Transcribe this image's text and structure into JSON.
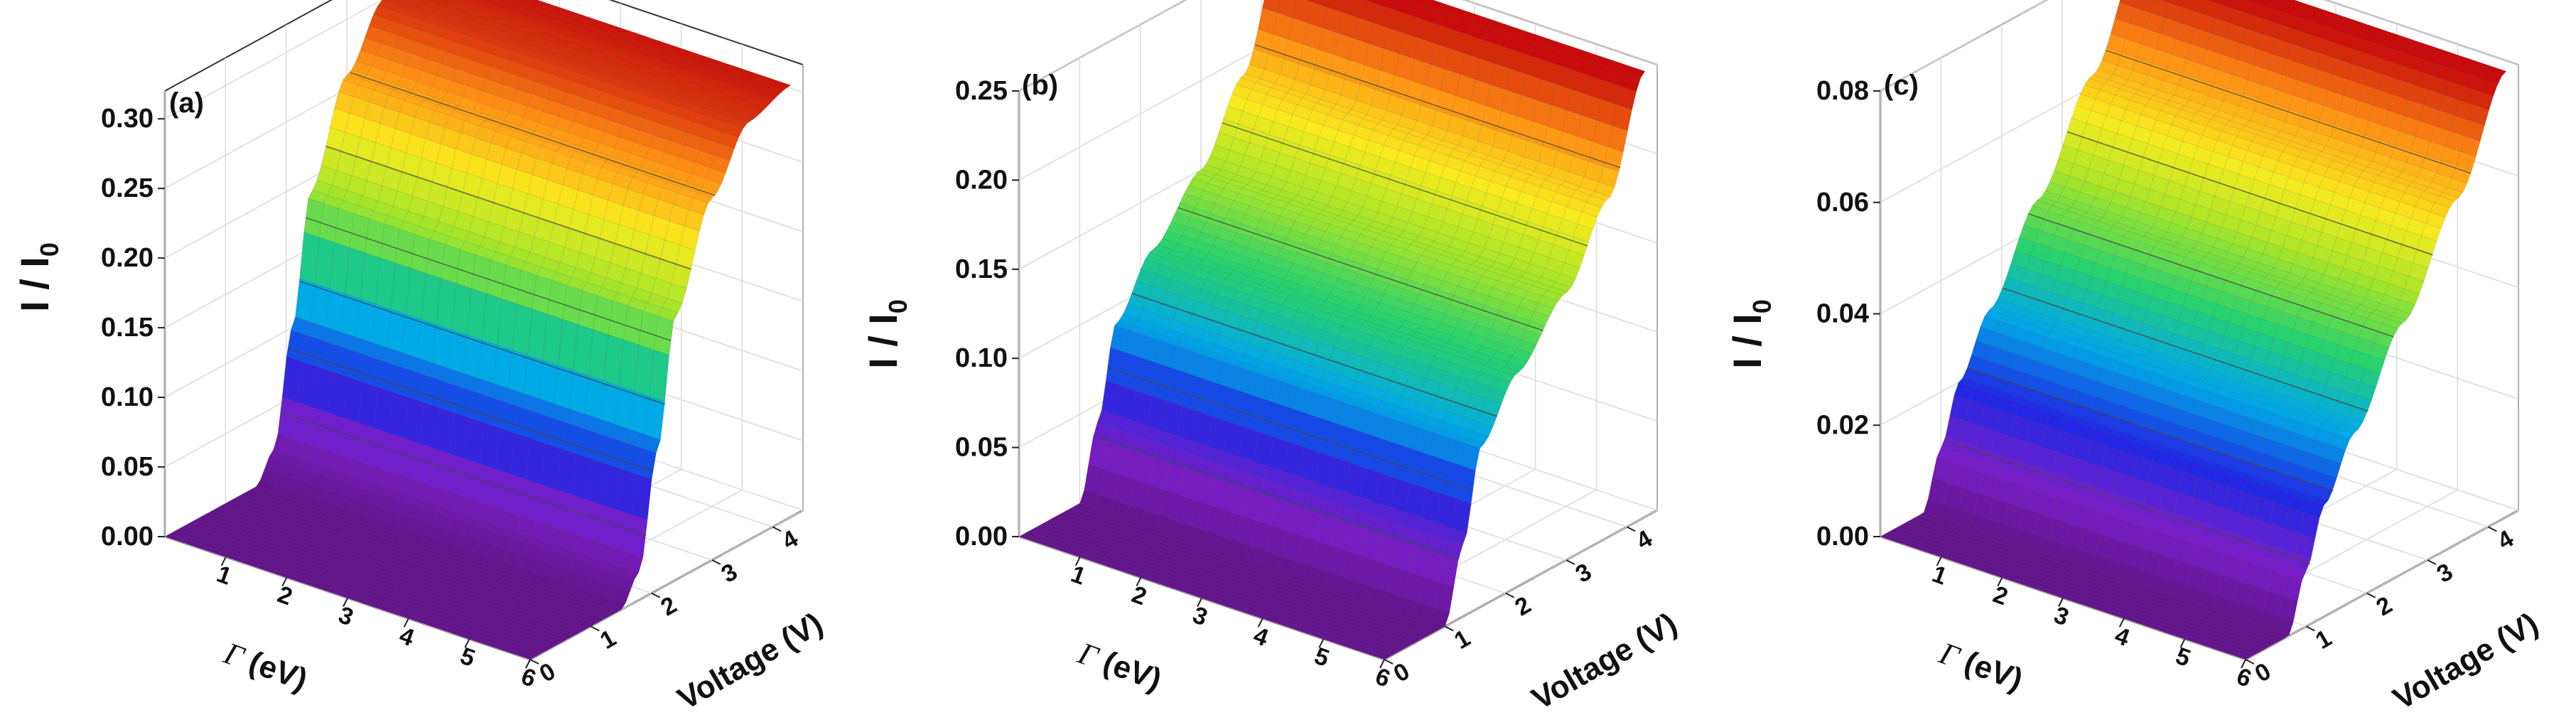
{
  "chart_data": [
    {
      "type": "surface3d",
      "panel_label": "(a)",
      "zlabel": {
        "main": "I / I",
        "sub": "0"
      },
      "xlabel": {
        "sym": "Γ",
        "rest": " (eV)"
      },
      "ylabel": "Voltage (V)",
      "z_ticks": [
        "0.00",
        "0.05",
        "0.10",
        "0.15",
        "0.20",
        "0.25",
        "0.30"
      ],
      "zlim": [
        0,
        0.32
      ],
      "gamma_ticks": [
        "1",
        "2",
        "3",
        "4",
        "5",
        "6"
      ],
      "gamma_range": [
        0,
        6
      ],
      "voltage_ticks": [
        "0",
        "1",
        "2",
        "3",
        "4"
      ],
      "voltage_range": [
        0,
        4.5
      ],
      "surface_profile": [
        {
          "voltage": 0.0,
          "current": 0.0
        },
        {
          "voltage": 1.5,
          "current": 0.0
        },
        {
          "voltage": 1.8,
          "current": 0.02
        },
        {
          "voltage": 2.1,
          "current": 0.1
        },
        {
          "voltage": 2.4,
          "current": 0.19
        },
        {
          "voltage": 3.0,
          "current": 0.26
        },
        {
          "voltage": 3.6,
          "current": 0.3
        },
        {
          "voltage": 4.3,
          "current": 0.31
        }
      ],
      "colormap": "rainbow (violet low → red high)"
    },
    {
      "type": "surface3d",
      "panel_label": "(b)",
      "zlabel": {
        "main": "I / I",
        "sub": "0"
      },
      "xlabel": {
        "sym": "Γ",
        "rest": " (eV)"
      },
      "ylabel": "Voltage (V)",
      "z_ticks": [
        "0.00",
        "0.05",
        "0.10",
        "0.15",
        "0.20",
        "0.25"
      ],
      "zlim": [
        0,
        0.25
      ],
      "gamma_ticks": [
        "1",
        "2",
        "3",
        "4",
        "5",
        "6"
      ],
      "gamma_range": [
        0,
        6
      ],
      "voltage_ticks": [
        "0",
        "1",
        "2",
        "3",
        "4"
      ],
      "voltage_range": [
        0,
        4.5
      ],
      "surface_profile": [
        {
          "voltage": 0.0,
          "current": 0.0
        },
        {
          "voltage": 1.0,
          "current": 0.0
        },
        {
          "voltage": 1.3,
          "current": 0.04
        },
        {
          "voltage": 1.6,
          "current": 0.09
        },
        {
          "voltage": 2.2,
          "current": 0.12
        },
        {
          "voltage": 3.0,
          "current": 0.15
        },
        {
          "voltage": 3.7,
          "current": 0.19
        },
        {
          "voltage": 4.3,
          "current": 0.25
        }
      ],
      "colormap": "rainbow (violet low → red high)"
    },
    {
      "type": "surface3d",
      "panel_label": "(c)",
      "zlabel": {
        "main": "I / I",
        "sub": "0"
      },
      "xlabel": {
        "sym": "Γ",
        "rest": " (eV)"
      },
      "ylabel": "Voltage (V)",
      "z_ticks": [
        "0.00",
        "0.02",
        "0.04",
        "0.06",
        "0.08"
      ],
      "zlim": [
        0,
        0.08
      ],
      "gamma_ticks": [
        "1",
        "2",
        "3",
        "4",
        "5",
        "6"
      ],
      "gamma_range": [
        0,
        6
      ],
      "voltage_ticks": [
        "0",
        "1",
        "2",
        "3",
        "4"
      ],
      "voltage_range": [
        0,
        4.5
      ],
      "surface_profile": [
        {
          "voltage": 0.0,
          "current": 0.0
        },
        {
          "voltage": 0.7,
          "current": 0.0
        },
        {
          "voltage": 1.0,
          "current": 0.01
        },
        {
          "voltage": 1.3,
          "current": 0.02
        },
        {
          "voltage": 1.8,
          "current": 0.03
        },
        {
          "voltage": 2.6,
          "current": 0.045
        },
        {
          "voltage": 3.5,
          "current": 0.062
        },
        {
          "voltage": 4.3,
          "current": 0.08
        }
      ],
      "colormap": "rainbow (violet low → red high)"
    }
  ]
}
